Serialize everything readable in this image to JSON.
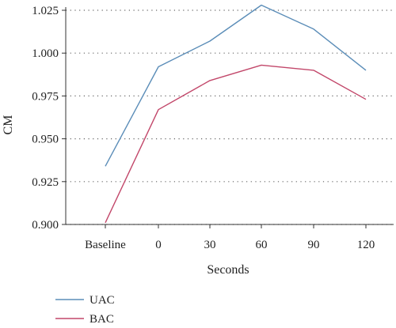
{
  "chart_data": {
    "type": "line",
    "categories": [
      "Baseline",
      "0",
      "30",
      "60",
      "90",
      "120"
    ],
    "series": [
      {
        "name": "UAC",
        "color": "#5b8db8",
        "values": [
          0.934,
          0.992,
          1.007,
          1.028,
          1.014,
          0.99
        ]
      },
      {
        "name": "BAC",
        "color": "#c2476a",
        "values": [
          0.901,
          0.967,
          0.984,
          0.993,
          0.99,
          0.973
        ]
      }
    ],
    "xlabel": "Seconds",
    "ylabel": "CM",
    "ylim": [
      0.9,
      1.025
    ],
    "yticks": [
      0.9,
      0.925,
      0.95,
      0.975,
      1.0,
      1.025
    ],
    "ytick_labels": [
      "0.900",
      "0.925",
      "0.950",
      "0.975",
      "1.000",
      "1.025"
    ],
    "grid": "horizontal dotted",
    "legend_position": "bottom-left"
  }
}
